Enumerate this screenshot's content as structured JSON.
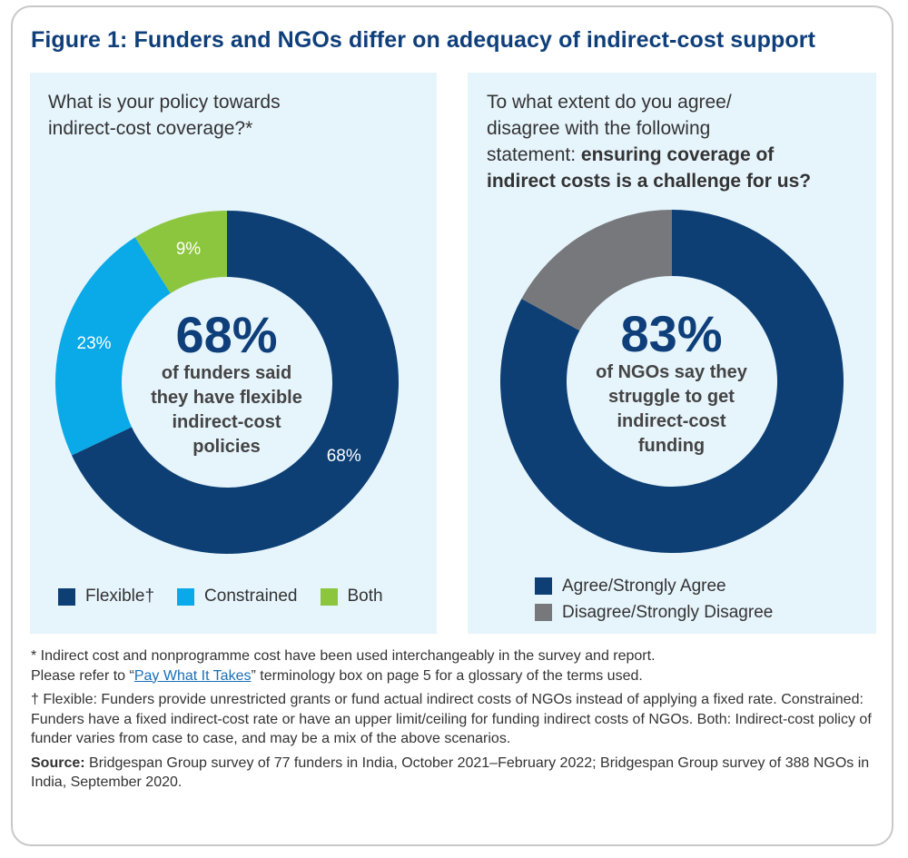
{
  "title": "Figure 1: Funders and NGOs differ on adequacy of indirect-cost support",
  "left_panel": {
    "question_lines": [
      "What is your policy towards",
      "indirect-cost coverage?*"
    ],
    "big_value": "68%",
    "center_lines": [
      "of funders said",
      "they have flexible",
      "indirect-cost",
      "policies"
    ],
    "legend": [
      {
        "label": "Flexible†",
        "color": "#0d3f74"
      },
      {
        "label": "Constrained",
        "color": "#0aa9e8"
      },
      {
        "label": "Both",
        "color": "#8cc63f"
      }
    ]
  },
  "right_panel": {
    "question_line1": "To what extent do you agree/",
    "question_line2": "disagree with the following",
    "question_line3_normal": "statement: ",
    "question_line3_bold": "ensuring coverage of",
    "question_line4_bold": "indirect costs is a challenge for us?",
    "big_value": "83%",
    "center_lines": [
      "of NGOs say they",
      "struggle to get",
      "indirect-cost",
      "funding"
    ],
    "legend": [
      {
        "label": "Agree/Strongly Agree",
        "color": "#0d3f74"
      },
      {
        "label": "Disagree/Strongly Disagree",
        "color": "#77787b"
      }
    ]
  },
  "chart_data": [
    {
      "type": "pie",
      "title": "What is your policy towards indirect-cost coverage?*",
      "categories": [
        "Flexible†",
        "Constrained",
        "Both"
      ],
      "values": [
        68,
        23,
        9
      ],
      "labels": [
        "68%",
        "23%",
        "9%"
      ],
      "colors": [
        "#0d3f74",
        "#0aa9e8",
        "#8cc63f"
      ],
      "legend_placement": "bottom"
    },
    {
      "type": "pie",
      "title": "To what extent do you agree/disagree with the following statement: ensuring coverage of indirect costs is a challenge for us?",
      "categories": [
        "Agree/Strongly Agree",
        "Disagree/Strongly Disagree"
      ],
      "values": [
        83,
        17
      ],
      "labels": [
        "",
        ""
      ],
      "colors": [
        "#0d3f74",
        "#77787b"
      ],
      "legend_placement": "bottom"
    }
  ],
  "notes": {
    "note1_before": "* Indirect cost and nonprogramme cost have been used interchangeably in the survey and report.",
    "note1_line2_before": "Please refer to “",
    "note1_link": "Pay What It Takes",
    "note1_after": "” terminology box on page 5 for a glossary of the terms used.",
    "note2": "† Flexible: Funders provide unrestricted grants or fund actual indirect costs of NGOs instead of applying a fixed rate. Constrained: Funders have a fixed indirect-cost rate or have an upper limit/ceiling for funding indirect costs of NGOs. Both: Indirect-cost policy of funder varies from case to case, and may be a mix of the above scenarios.",
    "source_label": "Source:",
    "source_text": " Bridgespan Group survey of 77 funders in India, October 2021–February 2022; Bridgespan Group survey of 388 NGOs in India, September 2020."
  }
}
